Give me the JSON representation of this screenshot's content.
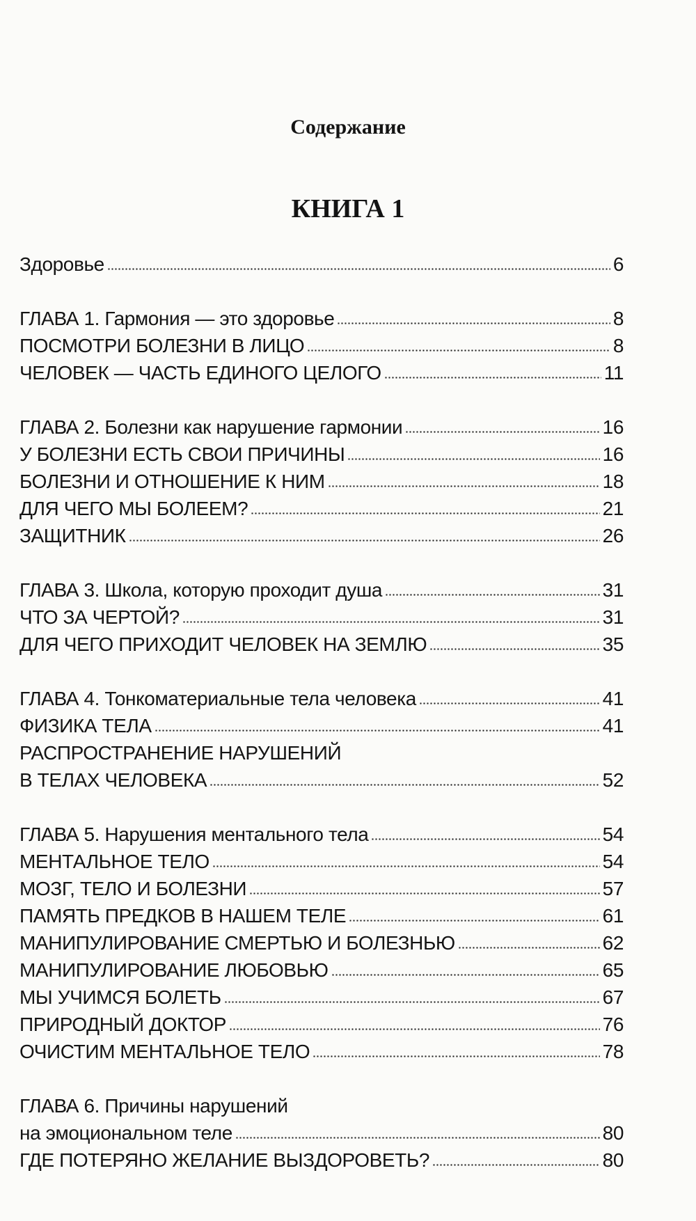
{
  "toc_title": "Содержание",
  "book_title": "КНИГА 1",
  "groups": [
    {
      "entries": [
        {
          "title": "Здоровье",
          "page": "6"
        }
      ]
    },
    {
      "entries": [
        {
          "title": "ГЛАВА 1. Гармония — это здоровье",
          "page": "8"
        },
        {
          "title": "ПОСМОТРИ БОЛЕЗНИ В ЛИЦО",
          "page": "8"
        },
        {
          "title": "ЧЕЛОВЕК — ЧАСТЬ ЕДИНОГО ЦЕЛОГО",
          "page": "11"
        }
      ]
    },
    {
      "entries": [
        {
          "title": "ГЛАВА 2. Болезни как нарушение гармонии",
          "page": "16"
        },
        {
          "title": "У БОЛЕЗНИ ЕСТЬ СВОИ ПРИЧИНЫ",
          "page": "16"
        },
        {
          "title": "БОЛЕЗНИ И ОТНОШЕНИЕ К НИМ",
          "page": "18"
        },
        {
          "title": "ДЛЯ ЧЕГО МЫ БОЛЕЕМ?",
          "page": "21"
        },
        {
          "title": "ЗАЩИТНИК",
          "page": "26"
        }
      ]
    },
    {
      "entries": [
        {
          "title": "ГЛАВА 3. Школа, которую проходит душа",
          "page": "31"
        },
        {
          "title": "ЧТО ЗА ЧЕРТОЙ?",
          "page": "31"
        },
        {
          "title": "ДЛЯ ЧЕГО ПРИХОДИТ ЧЕЛОВЕК НА ЗЕМЛЮ",
          "page": "35"
        }
      ]
    },
    {
      "entries": [
        {
          "title": "ГЛАВА 4. Тонкоматериальные тела человека",
          "page": "41"
        },
        {
          "title": "ФИЗИКА ТЕЛА",
          "page": "41"
        },
        {
          "title_first_line": "РАСПРОСТРАНЕНИЕ НАРУШЕНИЙ",
          "title": "В ТЕЛАХ ЧЕЛОВЕКА",
          "page": "52"
        }
      ]
    },
    {
      "entries": [
        {
          "title": "ГЛАВА 5. Нарушения ментального тела",
          "page": "54"
        },
        {
          "title": "МЕНТАЛЬНОЕ ТЕЛО",
          "page": "54"
        },
        {
          "title": "МОЗГ, ТЕЛО И БОЛЕЗНИ",
          "page": "57"
        },
        {
          "title": "ПАМЯТЬ ПРЕДКОВ В НАШЕМ ТЕЛЕ",
          "page": "61"
        },
        {
          "title": "МАНИПУЛИРОВАНИЕ СМЕРТЬЮ И БОЛЕЗНЬЮ",
          "page": "62"
        },
        {
          "title": "МАНИПУЛИРОВАНИЕ ЛЮБОВЬЮ",
          "page": "65"
        },
        {
          "title": "МЫ УЧИМСЯ БОЛЕТЬ",
          "page": "67"
        },
        {
          "title": "ПРИРОДНЫЙ ДОКТОР",
          "page": "76"
        },
        {
          "title": "ОЧИСТИМ МЕНТАЛЬНОЕ ТЕЛО",
          "page": "78"
        }
      ]
    },
    {
      "entries": [
        {
          "title_first_line": "ГЛАВА 6. Причины нарушений",
          "title": "на эмоциональном теле",
          "page": "80"
        },
        {
          "title": "ГДЕ ПОТЕРЯНО ЖЕЛАНИЕ ВЫЗДОРОВЕТЬ?",
          "page": "80"
        }
      ]
    }
  ]
}
